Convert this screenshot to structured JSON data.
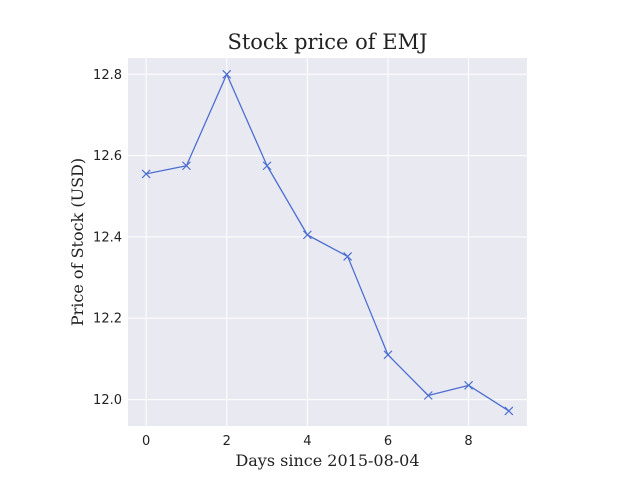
{
  "chart_data": {
    "type": "line",
    "title": "Stock price of EMJ",
    "xlabel": "Days since 2015-08-04",
    "ylabel": "Price of Stock (USD)",
    "x": [
      0,
      1,
      2,
      3,
      4,
      5,
      6,
      7,
      8,
      9
    ],
    "series": [
      {
        "values": [
          12.555,
          12.575,
          12.8,
          12.575,
          12.405,
          12.352,
          12.11,
          12.01,
          12.035,
          11.972
        ],
        "color": "#4c6fd1",
        "marker": "x"
      }
    ],
    "xlim": [
      -0.45,
      9.45
    ],
    "ylim": [
      11.935,
      12.84
    ],
    "xticks": [
      0,
      2,
      4,
      6,
      8
    ],
    "yticks": [
      12.0,
      12.2,
      12.4,
      12.6,
      12.8
    ],
    "xtick_labels": [
      "0",
      "2",
      "4",
      "6",
      "8"
    ],
    "ytick_labels": [
      "12.0",
      "12.2",
      "12.4",
      "12.6",
      "12.8"
    ],
    "grid": true,
    "style": {
      "plot_background": "#e9e9f1",
      "grid_color": "#ffffff"
    }
  }
}
